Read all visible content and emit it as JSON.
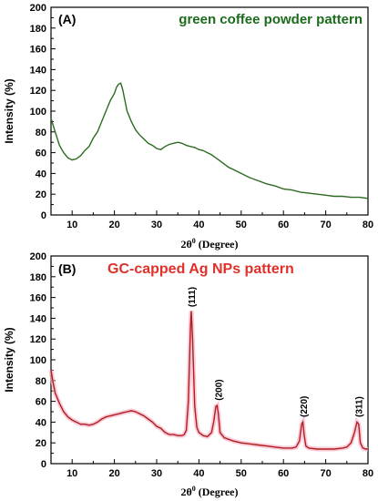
{
  "chart_data": [
    {
      "type": "line",
      "panel_label": "(A)",
      "title": "green coffee powder pattern",
      "title_color": "#1c6b1c",
      "line_color": "#2e6b22",
      "xlabel_main": "2θ",
      "xlabel_sup": "0",
      "xlabel_unit": " (Degree)",
      "ylabel": "Intensity (%)",
      "xlim": [
        5,
        80
      ],
      "ylim": [
        0,
        200
      ],
      "xticks": [
        10,
        20,
        30,
        40,
        50,
        60,
        70,
        80
      ],
      "yticks": [
        0,
        20,
        40,
        60,
        80,
        100,
        120,
        140,
        160,
        180,
        200
      ],
      "grid": false,
      "series": [
        {
          "x": [
            5,
            6,
            7,
            8,
            9,
            10,
            11,
            12,
            13,
            14,
            15,
            16,
            17,
            18,
            19,
            20,
            20.5,
            21,
            21.5,
            22,
            22.5,
            23,
            24,
            25,
            26,
            27,
            28,
            29,
            30,
            31,
            32,
            33,
            34,
            35,
            36,
            37,
            38,
            39,
            40,
            41,
            42,
            43,
            44,
            45,
            46,
            47,
            48,
            50,
            52,
            54,
            56,
            58,
            60,
            62,
            64,
            66,
            68,
            70,
            72,
            74,
            76,
            78,
            80
          ],
          "y": [
            93,
            80,
            67,
            60,
            55,
            53,
            54,
            57,
            62,
            66,
            74,
            80,
            90,
            100,
            110,
            117,
            123,
            126,
            127,
            120,
            110,
            100,
            90,
            82,
            77,
            73,
            69,
            67,
            64,
            63,
            66,
            68,
            69,
            70,
            69,
            67,
            66,
            65,
            63,
            62,
            60,
            58,
            55,
            52,
            49,
            46,
            44,
            40,
            36,
            33,
            30,
            28,
            25,
            24,
            22,
            21,
            20,
            19,
            18,
            18,
            17,
            17,
            16
          ]
        }
      ]
    },
    {
      "type": "line",
      "panel_label": "(B)",
      "title": "GC-capped Ag NPs pattern",
      "title_color": "#e0302a",
      "line_color": "#b01e1e",
      "xlabel_main": "2θ",
      "xlabel_sup": "0",
      "xlabel_unit": " (Degree)",
      "ylabel": "Intensity (%)",
      "xlim": [
        5,
        80
      ],
      "ylim": [
        0,
        200
      ],
      "xticks": [
        10,
        20,
        30,
        40,
        50,
        60,
        70,
        80
      ],
      "yticks": [
        0,
        20,
        40,
        60,
        80,
        100,
        120,
        140,
        160,
        180,
        200
      ],
      "grid": false,
      "series": [
        {
          "x": [
            5,
            5.5,
            6,
            7,
            8,
            9,
            10,
            11,
            12,
            13,
            14,
            15,
            16,
            17,
            18,
            19,
            20,
            21,
            22,
            23,
            24,
            25,
            26,
            27,
            28,
            29,
            30,
            31,
            32,
            33,
            34,
            35,
            36,
            36.5,
            37,
            37.5,
            38,
            38.2,
            38.5,
            39,
            39.5,
            40,
            41,
            42,
            43,
            43.5,
            44,
            44.3,
            44.6,
            45,
            46,
            48,
            50,
            52,
            54,
            56,
            58,
            60,
            62,
            63,
            63.8,
            64.3,
            64.6,
            64.9,
            65.3,
            66,
            68,
            70,
            72,
            74,
            75,
            76,
            76.8,
            77.4,
            77.8,
            78.2,
            78.8,
            79.5,
            80
          ],
          "y": [
            90,
            78,
            68,
            58,
            50,
            45,
            42,
            40,
            38,
            38,
            37,
            38,
            40,
            43,
            45,
            46,
            47,
            48,
            49,
            50,
            51,
            50,
            48,
            46,
            43,
            40,
            36,
            34,
            30,
            28,
            28,
            27,
            27,
            28,
            32,
            60,
            130,
            147,
            120,
            55,
            35,
            30,
            27,
            26,
            30,
            40,
            55,
            56,
            48,
            30,
            25,
            22,
            20,
            19,
            18,
            17,
            16,
            15,
            15,
            16,
            22,
            38,
            40,
            28,
            17,
            15,
            14,
            14,
            14,
            15,
            16,
            20,
            30,
            40,
            38,
            20,
            15,
            14,
            14
          ]
        }
      ],
      "annotations": [
        {
          "text": "(111)",
          "x": 38.2,
          "y": 149
        },
        {
          "text": "(200)",
          "x": 44.5,
          "y": 59
        },
        {
          "text": "(220)",
          "x": 64.7,
          "y": 43
        },
        {
          "text": "(311)",
          "x": 77.7,
          "y": 43
        }
      ]
    }
  ]
}
